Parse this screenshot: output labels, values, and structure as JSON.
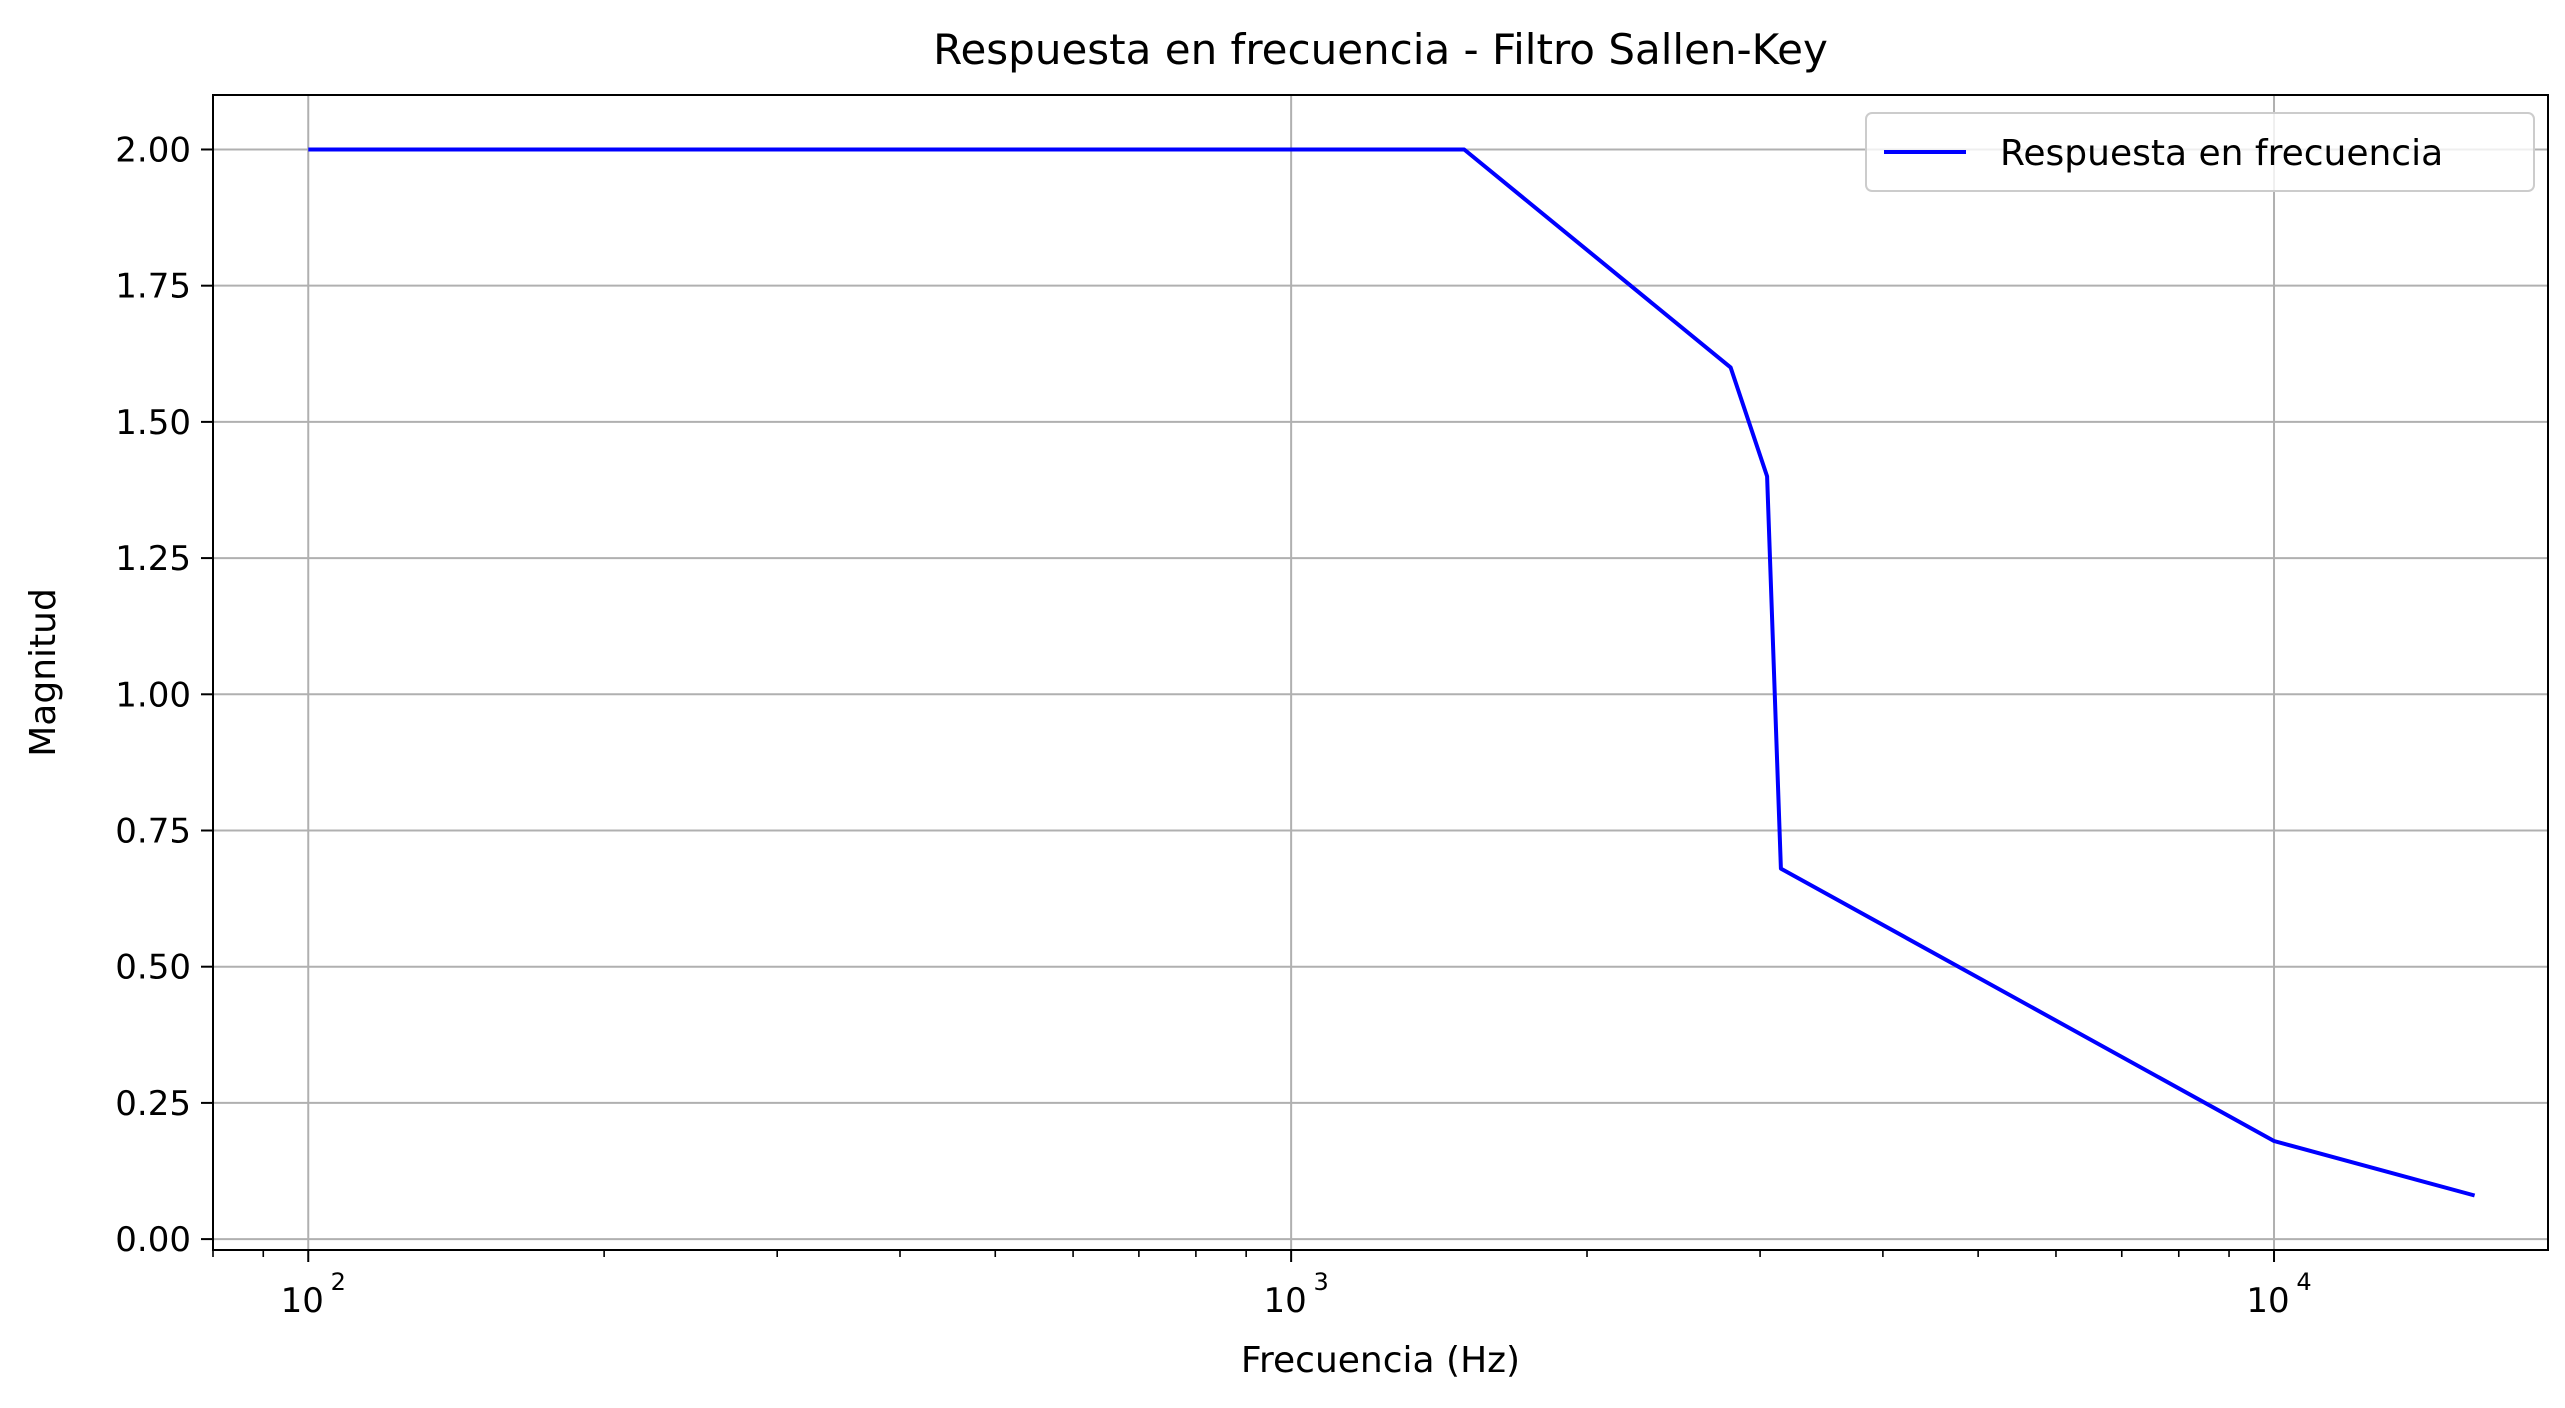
{
  "chart_data": {
    "type": "line",
    "title": "Respuesta en frecuencia - Filtro Sallen-Key",
    "xlabel": "Frecuencia (Hz)",
    "ylabel": "Magnitud",
    "x_scale": "log",
    "xlim": [
      80,
      19000
    ],
    "ylim": [
      -0.02,
      2.1
    ],
    "grid": true,
    "legend_position": "top-right",
    "x_ticks": [
      {
        "value": 100,
        "base": "10",
        "exp": "2"
      },
      {
        "value": 1000,
        "base": "10",
        "exp": "3"
      },
      {
        "value": 10000,
        "base": "10",
        "exp": "4"
      }
    ],
    "y_ticks": [
      {
        "value": 0.0,
        "label": "0.00"
      },
      {
        "value": 0.25,
        "label": "0.25"
      },
      {
        "value": 0.5,
        "label": "0.50"
      },
      {
        "value": 0.75,
        "label": "0.75"
      },
      {
        "value": 1.0,
        "label": "1.00"
      },
      {
        "value": 1.25,
        "label": "1.25"
      },
      {
        "value": 1.5,
        "label": "1.50"
      },
      {
        "value": 1.75,
        "label": "1.75"
      },
      {
        "value": 2.0,
        "label": "2.00"
      }
    ],
    "series": [
      {
        "name": "Respuesta en frecuencia",
        "color": "#0000ff",
        "x": [
          100,
          1500,
          2800,
          3050,
          3150,
          10000,
          16000
        ],
        "y": [
          2.0,
          2.0,
          1.6,
          1.4,
          0.68,
          0.18,
          0.08
        ]
      }
    ]
  }
}
